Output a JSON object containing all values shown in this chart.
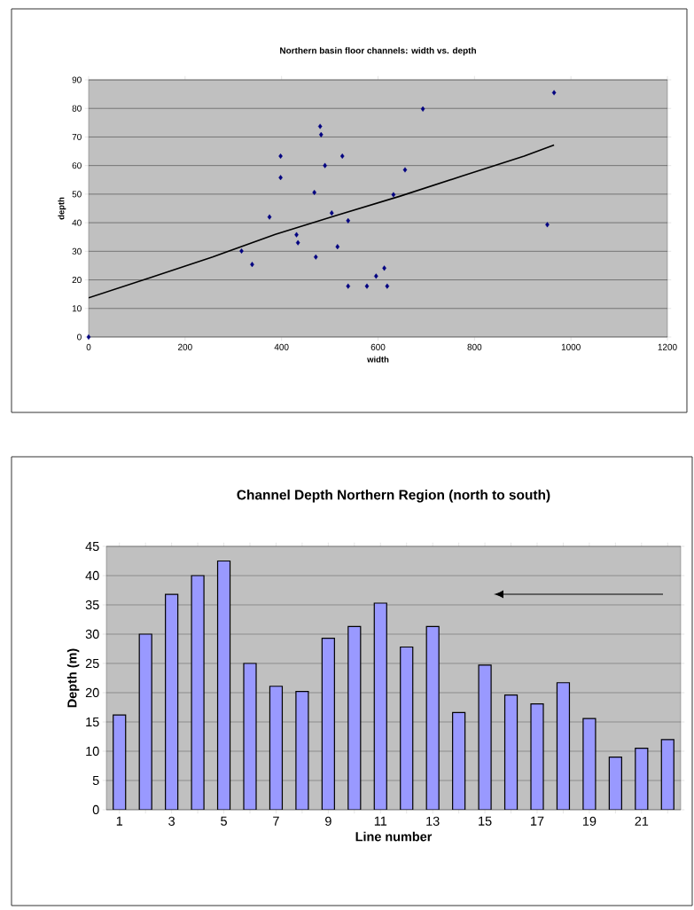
{
  "chart_data": [
    {
      "type": "scatter",
      "title": "Northern basin floor channels: width vs. depth",
      "xlabel": "width",
      "ylabel": "depth",
      "xlim": [
        0,
        1200
      ],
      "xticks": [
        0,
        200,
        400,
        600,
        800,
        1000,
        1200
      ],
      "ylim": [
        0,
        90
      ],
      "yticks": [
        0,
        10,
        20,
        30,
        40,
        50,
        60,
        70,
        80,
        90
      ],
      "grid": "y",
      "marker": "diamond",
      "series": [
        {
          "color": "#000080",
          "x": [
            0,
            317,
            339,
            375,
            398,
            398,
            431,
            434,
            468,
            471,
            480,
            482,
            490,
            504,
            516,
            526,
            538,
            538,
            577,
            596,
            613,
            619,
            632,
            656,
            693,
            951,
            965
          ],
          "values": [
            0,
            30.1,
            25.4,
            42.0,
            63.3,
            55.8,
            35.8,
            33.0,
            50.6,
            28.0,
            73.7,
            70.8,
            60.0,
            43.4,
            31.6,
            63.3,
            40.7,
            17.8,
            17.8,
            21.3,
            24.1,
            17.8,
            49.8,
            58.5,
            79.8,
            39.3,
            85.5
          ]
        },
        {
          "type": "line",
          "color": "#000000",
          "marker": "none",
          "x": [
            0,
            128,
            257,
            387,
            516,
            646,
            774,
            903,
            965
          ],
          "values": [
            13.7,
            20.8,
            28.0,
            35.9,
            42.7,
            49.3,
            56.3,
            63.3,
            67.2
          ]
        }
      ]
    },
    {
      "type": "bar",
      "title": "Channel Depth Northern Region (north to south)",
      "xlabel": "Line number",
      "ylabel": "Depth (m)",
      "categories": [
        "1",
        null,
        "3",
        null,
        "5",
        null,
        "7",
        null,
        "9",
        null,
        "11",
        null,
        "13",
        null,
        "15",
        null,
        "17",
        null,
        "19",
        null,
        "21",
        null
      ],
      "values": [
        16.2,
        30,
        36.8,
        40,
        42.5,
        25,
        21.1,
        20.2,
        29.3,
        31.3,
        35.3,
        27.8,
        31.3,
        16.6,
        24.7,
        19.6,
        18.1,
        21.7,
        15.6,
        9.0,
        10.5,
        12.0
      ],
      "color": "#9999ff",
      "ylim": [
        0,
        45
      ],
      "yticks": [
        0,
        5,
        10,
        15,
        20,
        25,
        30,
        35,
        40,
        45
      ],
      "grid": "y"
    }
  ]
}
